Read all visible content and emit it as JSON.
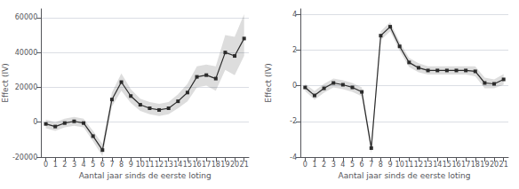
{
  "chart_data": [
    {
      "type": "line",
      "x": [
        0,
        1,
        2,
        3,
        4,
        5,
        6,
        7,
        8,
        9,
        10,
        11,
        12,
        13,
        14,
        15,
        16,
        17,
        18,
        19,
        20,
        21
      ],
      "values": [
        -1000,
        -2500,
        -500,
        500,
        -500,
        -8000,
        -16000,
        13000,
        23000,
        15000,
        10000,
        8000,
        7000,
        8000,
        12000,
        17000,
        26000,
        27000,
        25000,
        40000,
        38000,
        48000
      ],
      "ci_low": [
        -3500,
        -5000,
        -3000,
        -2000,
        -3000,
        -11000,
        -19500,
        9000,
        18000,
        11000,
        6500,
        4500,
        3500,
        4500,
        8000,
        12000,
        20000,
        21000,
        18000,
        30000,
        27000,
        38000
      ],
      "ci_high": [
        1500,
        0,
        2000,
        3000,
        2000,
        -5000,
        -12500,
        17000,
        28000,
        19000,
        13500,
        11500,
        10500,
        11500,
        16000,
        22000,
        32000,
        33000,
        32000,
        50000,
        49000,
        62000
      ],
      "xlim": [
        -0.5,
        21.5
      ],
      "xticks": [
        0,
        1,
        2,
        3,
        4,
        5,
        6,
        7,
        8,
        9,
        10,
        11,
        12,
        13,
        14,
        15,
        16,
        17,
        18,
        19,
        20,
        21
      ],
      "ylim": [
        -20000,
        65000
      ],
      "yticks": [
        -20000,
        0,
        20000,
        40000,
        60000
      ],
      "xlabel": "Aantal jaar sinds de eerste loting",
      "ylabel": "Effect (IV)",
      "grid": true,
      "marker": "square",
      "color": "#2b2b2b"
    },
    {
      "type": "line",
      "x": [
        0,
        1,
        2,
        3,
        4,
        5,
        6,
        7,
        8,
        9,
        10,
        11,
        12,
        13,
        14,
        15,
        16,
        17,
        18,
        19,
        20,
        21
      ],
      "values": [
        -0.1,
        -0.55,
        -0.15,
        0.15,
        0.05,
        -0.1,
        -0.35,
        -3.5,
        2.8,
        3.3,
        2.2,
        1.3,
        1.0,
        0.85,
        0.85,
        0.85,
        0.85,
        0.85,
        0.8,
        0.15,
        0.1,
        0.35
      ],
      "ci_low": [
        -0.3,
        -0.8,
        -0.4,
        -0.1,
        -0.2,
        -0.35,
        -0.6,
        -3.8,
        2.55,
        3.05,
        1.95,
        1.05,
        0.75,
        0.62,
        0.62,
        0.62,
        0.62,
        0.62,
        0.52,
        -0.15,
        -0.15,
        0.05
      ],
      "ci_high": [
        0.1,
        -0.3,
        0.1,
        0.4,
        0.3,
        0.15,
        -0.1,
        -3.2,
        3.05,
        3.55,
        2.45,
        1.55,
        1.25,
        1.08,
        1.08,
        1.08,
        1.08,
        1.08,
        1.08,
        0.45,
        0.35,
        0.65
      ],
      "xlim": [
        -0.5,
        21.5
      ],
      "xticks": [
        0,
        1,
        2,
        3,
        4,
        5,
        6,
        7,
        8,
        9,
        10,
        11,
        12,
        13,
        14,
        15,
        16,
        17,
        18,
        19,
        20,
        21
      ],
      "ylim": [
        -4,
        4.3
      ],
      "yticks": [
        -4,
        -2,
        0,
        2,
        4
      ],
      "xlabel": "Aantal jaar sinds de eerste loting",
      "ylabel": "Effect (IV)",
      "grid": true,
      "marker": "square",
      "color": "#2b2b2b"
    }
  ]
}
